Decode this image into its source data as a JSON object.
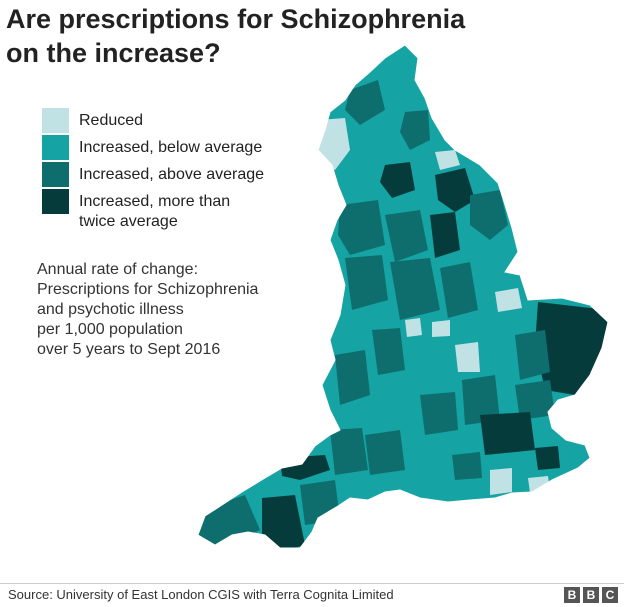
{
  "title": {
    "line1": "Are prescriptions for Schizophrenia",
    "line2": "on the increase?"
  },
  "legend": {
    "items": [
      {
        "label": "Reduced",
        "color": "#c1e2e4"
      },
      {
        "label": "Increased, below average",
        "color": "#16a3a3"
      },
      {
        "label": "Increased, above average",
        "color": "#0e6e6e"
      },
      {
        "label": "Increased, more than twice average",
        "color": "#063b3c"
      }
    ]
  },
  "note": {
    "line1": "Annual rate of change:",
    "line2": "Prescriptions for Schizophrenia",
    "line3": "and psychotic illness",
    "line4": "per 1,000 population",
    "line5": "over 5 years to Sept 2016"
  },
  "map": {
    "region": "England",
    "boundary_color": "#ffffff"
  },
  "footer": {
    "source": "Source: University of East London CGIS with Terra Cognita Limited",
    "logo": {
      "letters": [
        "B",
        "B",
        "C"
      ],
      "color": "#555555"
    }
  }
}
